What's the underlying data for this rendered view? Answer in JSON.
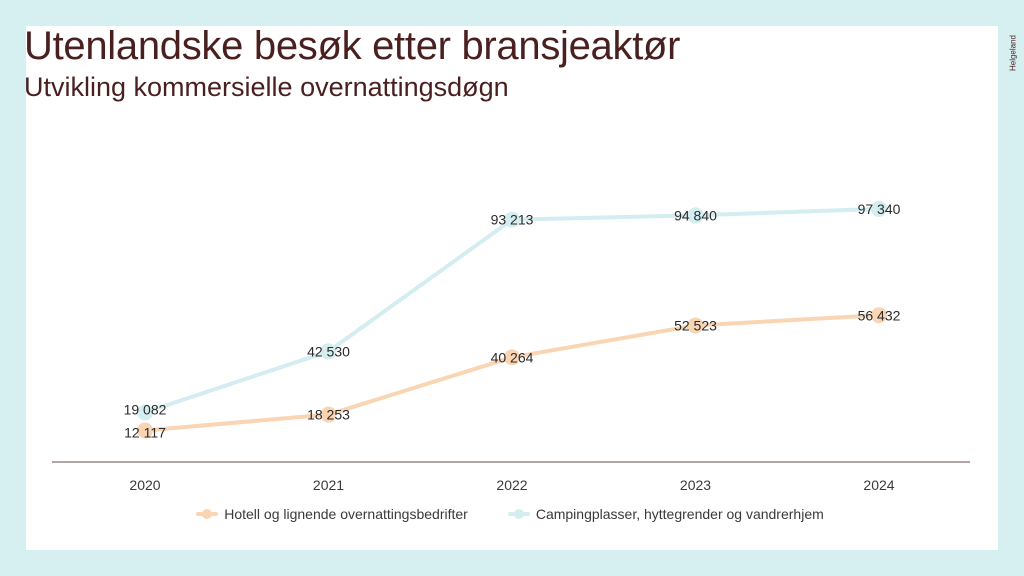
{
  "header": {
    "title": "Utenlandske besøk etter bransjeaktør",
    "subtitle": "Utvikling kommersielle overnattingsdøgn"
  },
  "logo": {
    "text": "Helgeland"
  },
  "chart_data": {
    "type": "line",
    "categories": [
      "2020",
      "2021",
      "2022",
      "2023",
      "2024"
    ],
    "series": [
      {
        "name": "Hotell og lignende overnattingsbedrifter",
        "color": "#f9d5b3",
        "values": [
          12117,
          18253,
          40264,
          52523,
          56432
        ],
        "labels": [
          "12 117",
          "18 253",
          "40 264",
          "52 523",
          "56 432"
        ]
      },
      {
        "name": "Campingplasser, hyttegrender og vandrerhjem",
        "color": "#d3edf0",
        "values": [
          19082,
          42530,
          93213,
          94840,
          97340
        ],
        "labels": [
          "19 082",
          "42 530",
          "93 213",
          "94 840",
          "97 340"
        ]
      }
    ],
    "ylim": [
      0,
      110000
    ],
    "grid": false,
    "legend": "bottom"
  }
}
